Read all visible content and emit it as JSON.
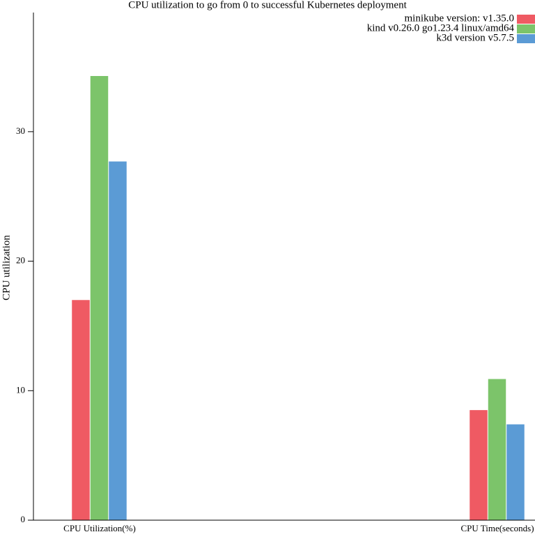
{
  "chart_data": {
    "type": "bar",
    "title": "CPU utilization to go from 0 to successful Kubernetes deployment",
    "y_label": "CPU utilization",
    "categories": [
      "CPU Utilization(%)",
      "CPU Time(seconds)"
    ],
    "series": [
      {
        "name": "minikube version: v1.35.0",
        "color": "#ef5a63",
        "values": [
          17.0,
          8.5
        ]
      },
      {
        "name": "kind v0.26.0 go1.23.4 linux/amd64",
        "color": "#7cc46a",
        "values": [
          34.3,
          10.9
        ]
      },
      {
        "name": "k3d version v5.7.5",
        "color": "#5b9bd5",
        "values": [
          27.7,
          7.4
        ]
      }
    ],
    "ylim": [
      0,
      39.2
    ],
    "yticks": [
      0,
      10,
      20,
      30
    ],
    "legend": "top-right"
  }
}
